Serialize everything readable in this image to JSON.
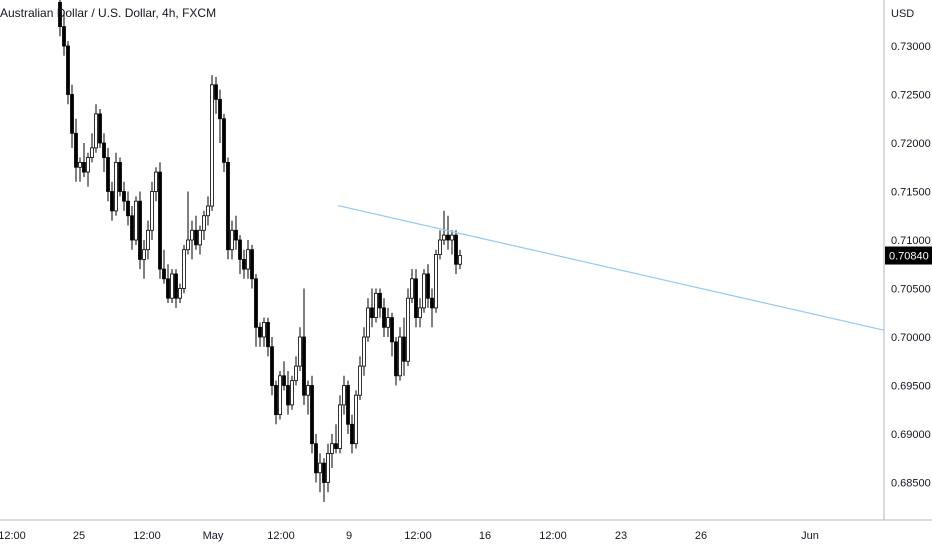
{
  "header": {
    "symbol_title": "Australian Dollar / U.S. Dollar, 4h, FXCM"
  },
  "chart_data": {
    "type": "candlestick",
    "title": "Australian Dollar / U.S. Dollar, 4h, FXCM",
    "currency_label": "USD",
    "interval": "4h",
    "source": "FXCM",
    "ylim": [
      0.6805,
      0.7348
    ],
    "y_ticks": [
      "0.73000",
      "0.72500",
      "0.72000",
      "0.71500",
      "0.71000",
      "0.70500",
      "0.70000",
      "0.69500",
      "0.69000",
      "0.68500"
    ],
    "x_ticks": [
      "12:00",
      "25",
      "12:00",
      "May",
      "12:00",
      "9",
      "12:00",
      "16",
      "12:00",
      "23",
      "26",
      "Jun"
    ],
    "last_price": "0.70840",
    "colors": {
      "up": "#ffffff",
      "down": "#000000",
      "wick": "#000000",
      "trendline": "#90caf9",
      "tag_bg": "#000000",
      "axis_text": "#131722"
    },
    "candles": [
      [
        0.7345,
        0.7357,
        0.731,
        0.732
      ],
      [
        0.732,
        0.7335,
        0.729,
        0.73
      ],
      [
        0.73,
        0.7305,
        0.724,
        0.725
      ],
      [
        0.725,
        0.726,
        0.7195,
        0.721
      ],
      [
        0.721,
        0.7225,
        0.716,
        0.7175
      ],
      [
        0.7175,
        0.7185,
        0.716,
        0.718
      ],
      [
        0.718,
        0.72,
        0.7165,
        0.717
      ],
      [
        0.717,
        0.719,
        0.7155,
        0.7185
      ],
      [
        0.7185,
        0.721,
        0.718,
        0.7195
      ],
      [
        0.7195,
        0.724,
        0.719,
        0.723
      ],
      [
        0.723,
        0.7235,
        0.7195,
        0.72
      ],
      [
        0.72,
        0.721,
        0.717,
        0.7185
      ],
      [
        0.7185,
        0.7195,
        0.714,
        0.715
      ],
      [
        0.715,
        0.716,
        0.712,
        0.713
      ],
      [
        0.713,
        0.719,
        0.7125,
        0.718
      ],
      [
        0.718,
        0.7185,
        0.7145,
        0.715
      ],
      [
        0.715,
        0.716,
        0.713,
        0.714
      ],
      [
        0.714,
        0.715,
        0.7115,
        0.7125
      ],
      [
        0.7125,
        0.7135,
        0.709,
        0.71
      ],
      [
        0.71,
        0.7145,
        0.7095,
        0.714
      ],
      [
        0.714,
        0.715,
        0.707,
        0.708
      ],
      [
        0.708,
        0.71,
        0.706,
        0.709
      ],
      [
        0.709,
        0.712,
        0.708,
        0.711
      ],
      [
        0.711,
        0.716,
        0.71,
        0.715
      ],
      [
        0.715,
        0.7175,
        0.714,
        0.717
      ],
      [
        0.717,
        0.718,
        0.706,
        0.707
      ],
      [
        0.707,
        0.709,
        0.7055,
        0.706
      ],
      [
        0.706,
        0.7075,
        0.7035,
        0.704
      ],
      [
        0.704,
        0.707,
        0.7035,
        0.7065
      ],
      [
        0.7065,
        0.707,
        0.703,
        0.704
      ],
      [
        0.704,
        0.7055,
        0.7035,
        0.705
      ],
      [
        0.705,
        0.7095,
        0.7045,
        0.709
      ],
      [
        0.709,
        0.715,
        0.7085,
        0.71
      ],
      [
        0.71,
        0.712,
        0.708,
        0.711
      ],
      [
        0.711,
        0.7125,
        0.709,
        0.7095
      ],
      [
        0.7095,
        0.7115,
        0.7085,
        0.711
      ],
      [
        0.711,
        0.713,
        0.71,
        0.7125
      ],
      [
        0.7125,
        0.7145,
        0.7115,
        0.7135
      ],
      [
        0.7135,
        0.727,
        0.713,
        0.726
      ],
      [
        0.726,
        0.7268,
        0.723,
        0.7245
      ],
      [
        0.7245,
        0.7255,
        0.72,
        0.7225
      ],
      [
        0.7225,
        0.723,
        0.717,
        0.718
      ],
      [
        0.718,
        0.7185,
        0.708,
        0.709
      ],
      [
        0.709,
        0.712,
        0.708,
        0.711
      ],
      [
        0.711,
        0.7125,
        0.709,
        0.71
      ],
      [
        0.71,
        0.7105,
        0.7065,
        0.708
      ],
      [
        0.708,
        0.709,
        0.706,
        0.707
      ],
      [
        0.707,
        0.71,
        0.706,
        0.709
      ],
      [
        0.709,
        0.7095,
        0.705,
        0.706
      ],
      [
        0.706,
        0.7065,
        0.699,
        0.701
      ],
      [
        0.701,
        0.7015,
        0.699,
        0.7
      ],
      [
        0.7,
        0.702,
        0.699,
        0.7015
      ],
      [
        0.7015,
        0.702,
        0.698,
        0.699
      ],
      [
        0.699,
        0.7,
        0.694,
        0.695
      ],
      [
        0.695,
        0.6955,
        0.691,
        0.692
      ],
      [
        0.692,
        0.6965,
        0.6915,
        0.696
      ],
      [
        0.696,
        0.6975,
        0.6945,
        0.695
      ],
      [
        0.695,
        0.6965,
        0.692,
        0.693
      ],
      [
        0.693,
        0.696,
        0.6925,
        0.6955
      ],
      [
        0.6955,
        0.698,
        0.695,
        0.697
      ],
      [
        0.697,
        0.701,
        0.6965,
        0.7
      ],
      [
        0.7,
        0.705,
        0.693,
        0.694
      ],
      [
        0.694,
        0.6955,
        0.692,
        0.695
      ],
      [
        0.695,
        0.696,
        0.688,
        0.689
      ],
      [
        0.689,
        0.69,
        0.685,
        0.686
      ],
      [
        0.686,
        0.688,
        0.684,
        0.687
      ],
      [
        0.687,
        0.6875,
        0.683,
        0.685
      ],
      [
        0.685,
        0.689,
        0.684,
        0.688
      ],
      [
        0.688,
        0.69,
        0.6865,
        0.689
      ],
      [
        0.689,
        0.691,
        0.688,
        0.6885
      ],
      [
        0.6885,
        0.694,
        0.688,
        0.693
      ],
      [
        0.693,
        0.696,
        0.692,
        0.695
      ],
      [
        0.695,
        0.6955,
        0.69,
        0.691
      ],
      [
        0.691,
        0.692,
        0.688,
        0.689
      ],
      [
        0.689,
        0.6945,
        0.6885,
        0.694
      ],
      [
        0.694,
        0.698,
        0.6935,
        0.697
      ],
      [
        0.697,
        0.701,
        0.696,
        0.7
      ],
      [
        0.7,
        0.704,
        0.6995,
        0.703
      ],
      [
        0.703,
        0.705,
        0.701,
        0.702
      ],
      [
        0.702,
        0.705,
        0.7015,
        0.7045
      ],
      [
        0.7045,
        0.705,
        0.702,
        0.703
      ],
      [
        0.703,
        0.704,
        0.7,
        0.701
      ],
      [
        0.701,
        0.703,
        0.7,
        0.702
      ],
      [
        0.702,
        0.7025,
        0.698,
        0.6995
      ],
      [
        0.6995,
        0.7,
        0.695,
        0.696
      ],
      [
        0.696,
        0.701,
        0.6955,
        0.7
      ],
      [
        0.7,
        0.702,
        0.696,
        0.6975
      ],
      [
        0.6975,
        0.705,
        0.697,
        0.704
      ],
      [
        0.704,
        0.707,
        0.7035,
        0.706
      ],
      [
        0.706,
        0.707,
        0.701,
        0.702
      ],
      [
        0.702,
        0.704,
        0.701,
        0.703
      ],
      [
        0.703,
        0.707,
        0.7025,
        0.7065
      ],
      [
        0.7065,
        0.7075,
        0.703,
        0.704
      ],
      [
        0.704,
        0.705,
        0.701,
        0.703
      ],
      [
        0.703,
        0.709,
        0.7025,
        0.7085
      ],
      [
        0.7085,
        0.711,
        0.708,
        0.71
      ],
      [
        0.71,
        0.713,
        0.7095,
        0.7105
      ],
      [
        0.7105,
        0.7125,
        0.709,
        0.71
      ],
      [
        0.71,
        0.711,
        0.7085,
        0.7105
      ],
      [
        0.7105,
        0.711,
        0.7065,
        0.7075
      ],
      [
        0.7075,
        0.709,
        0.707,
        0.7084
      ]
    ],
    "trendline": [
      {
        "bar": 48,
        "price": 0.71355
      },
      {
        "bar": 143,
        "price": 0.7007
      }
    ]
  }
}
